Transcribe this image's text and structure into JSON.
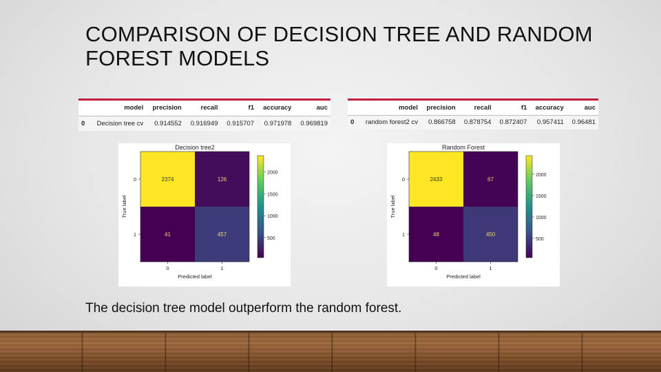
{
  "slide": {
    "title_line1": "COMPARISON OF DECISION TREE AND RANDOM",
    "title_line2": "FOREST MODELS",
    "caption": "The decision tree model outperform the random forest."
  },
  "tables": [
    {
      "headers": [
        "",
        "model",
        "precision",
        "recall",
        "f1",
        "accuracy",
        "auc"
      ],
      "row": [
        "0",
        "Decision tree cv",
        "0.914552",
        "0.916949",
        "0.915707",
        "0.971978",
        "0.969819"
      ]
    },
    {
      "headers": [
        "",
        "model",
        "precision",
        "recall",
        "f1",
        "accuracy",
        "auc"
      ],
      "row": [
        "0",
        "random forest2 cv",
        "0.866758",
        "0.878754",
        "0.872407",
        "0.957411",
        "0.96481"
      ]
    }
  ],
  "chart_data": [
    {
      "type": "heatmap",
      "title": "Decision tree2",
      "xlabel": "Predicted label",
      "ylabel": "True label",
      "x_ticks": [
        "0",
        "1"
      ],
      "y_ticks": [
        "0",
        "1"
      ],
      "matrix": [
        [
          2374,
          126
        ],
        [
          41,
          457
        ]
      ],
      "colorbar_ticks": [
        "2000",
        "1500",
        "1000",
        "500"
      ],
      "colormap": "viridis",
      "vmin": 41,
      "vmax": 2374
    },
    {
      "type": "heatmap",
      "title": "Random Forest",
      "xlabel": "Predicted label",
      "ylabel": "True label",
      "x_ticks": [
        "0",
        "1"
      ],
      "y_ticks": [
        "0",
        "1"
      ],
      "matrix": [
        [
          2433,
          67
        ],
        [
          48,
          450
        ]
      ],
      "colorbar_ticks": [
        "2000",
        "1500",
        "1000",
        "500"
      ],
      "colormap": "viridis",
      "vmin": 48,
      "vmax": 2433
    }
  ]
}
